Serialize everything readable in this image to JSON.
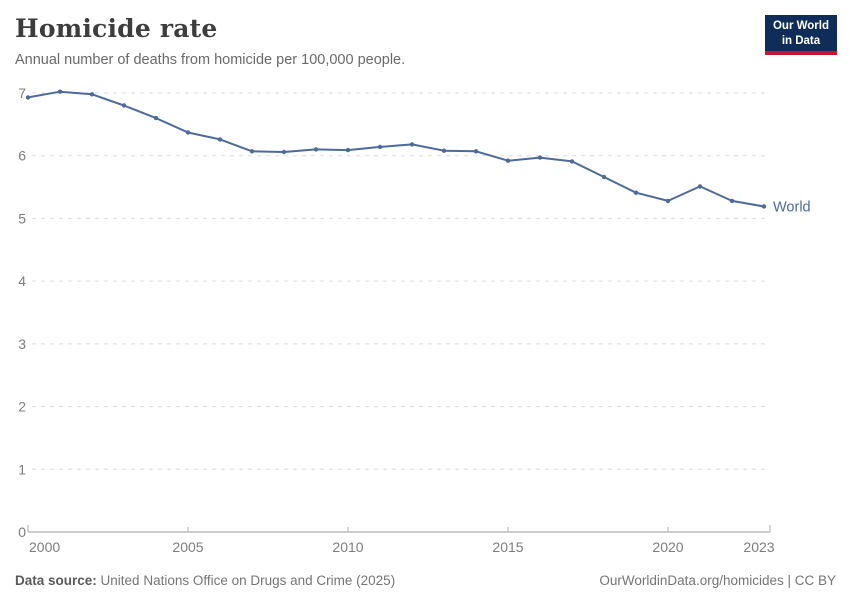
{
  "header": {
    "title": "Homicide rate",
    "subtitle": "Annual number of deaths from homicide per 100,000 people.",
    "logo": {
      "line1": "Our World",
      "line2": "in Data"
    }
  },
  "chart_data": {
    "type": "line",
    "title": "Homicide rate",
    "subtitle": "Annual number of deaths from homicide per 100,000 people.",
    "x": [
      2000,
      2001,
      2002,
      2003,
      2004,
      2005,
      2006,
      2007,
      2008,
      2009,
      2010,
      2011,
      2012,
      2013,
      2014,
      2015,
      2016,
      2017,
      2018,
      2019,
      2020,
      2021,
      2022,
      2023
    ],
    "series": [
      {
        "name": "World",
        "color": "#4c6a9c",
        "values": [
          6.93,
          7.02,
          6.98,
          6.8,
          6.6,
          6.37,
          6.26,
          6.07,
          6.06,
          6.1,
          6.09,
          6.14,
          6.18,
          6.08,
          6.07,
          5.92,
          5.97,
          5.91,
          5.66,
          5.41,
          5.28,
          5.51,
          5.28,
          5.19
        ]
      }
    ],
    "xlabel": "",
    "ylabel": "",
    "ylim": [
      0,
      7
    ],
    "yticks": [
      0,
      1,
      2,
      3,
      4,
      5,
      6,
      7
    ],
    "xticks": [
      2000,
      2005,
      2010,
      2015,
      2020,
      2023
    ],
    "grid": "horizontal-dashed",
    "legend_position": "end-of-line",
    "end_label": "World"
  },
  "footer": {
    "source_label": "Data source:",
    "source_value": "United Nations Office on Drugs and Crime (2025)",
    "rights": "OurWorldinData.org/homicides | CC BY"
  },
  "colors": {
    "line": "#4c6a9c",
    "logo_bg": "#102d59",
    "logo_bar": "#c4162e",
    "grid": "#dcdcdc",
    "axis_text": "#7d7d7d"
  }
}
